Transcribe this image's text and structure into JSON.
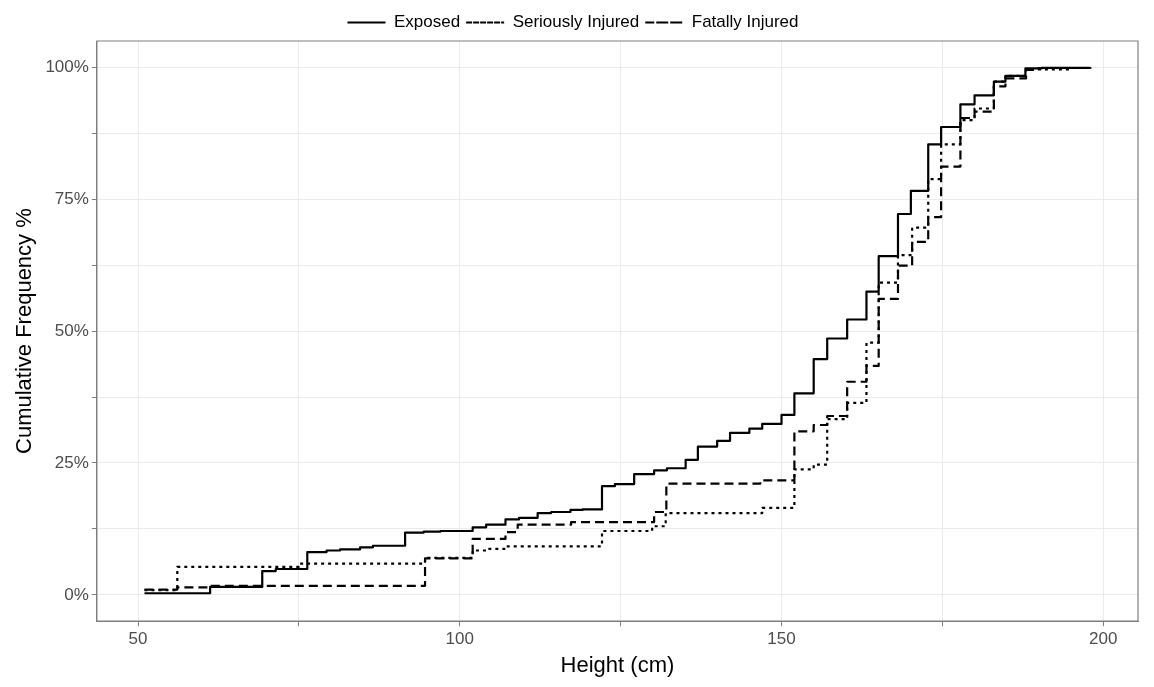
{
  "chart_data": {
    "type": "step",
    "xlabel": "Height (cm)",
    "ylabel": "Cumulative Frequency %",
    "xlim": [
      43.6,
      205.4
    ],
    "xticks": [
      50,
      {
        "value": 75,
        "label": null
      },
      100,
      {
        "value": 125,
        "label": null
      },
      150,
      {
        "value": 175,
        "label": null
      },
      200
    ],
    "ylim": [
      -5,
      105
    ],
    "yticks": [
      {
        "value": 0,
        "label": "0%"
      },
      {
        "value": 12.5,
        "label": null
      },
      {
        "value": 25,
        "label": "25%"
      },
      {
        "value": 37.5,
        "label": null
      },
      {
        "value": 50,
        "label": "50%"
      },
      {
        "value": 62.5,
        "label": null
      },
      {
        "value": 75,
        "label": "75%"
      },
      {
        "value": 87.5,
        "label": null
      },
      {
        "value": 100,
        "label": "100%"
      }
    ],
    "grid": true,
    "legend": "top",
    "marker": "none",
    "series": [
      {
        "name": "Exposed",
        "color": "#000000",
        "line_style": "solid",
        "x": [
          51.0,
          61.2,
          69.3,
          71.4,
          76.3,
          79.3,
          81.4,
          84.5,
          86.5,
          91.5,
          94.4,
          97.0,
          102.0,
          104.1,
          107.1,
          109.2,
          112.1,
          114.2,
          117.2,
          119.1,
          122.1,
          124.1,
          127.1,
          130.2,
          132.2,
          135.1,
          137.0,
          140.0,
          142.0,
          145.0,
          147.0,
          150.0,
          152.0,
          155.0,
          157.1,
          160.2,
          163.2,
          165.1,
          168.1,
          170.1,
          172.8,
          174.8,
          177.8,
          180.0,
          183.0,
          184.8,
          187.9,
          190.4,
          198.0
        ],
        "values": [
          0.3,
          1.5,
          4.5,
          4.9,
          8.1,
          8.4,
          8.6,
          9.0,
          9.3,
          11.8,
          12.0,
          12.1,
          12.8,
          13.3,
          14.3,
          14.6,
          15.5,
          15.7,
          16.1,
          16.2,
          20.6,
          21.0,
          22.9,
          23.6,
          24.0,
          25.6,
          28.1,
          29.2,
          30.7,
          31.5,
          32.4,
          34.1,
          38.2,
          44.7,
          48.6,
          52.2,
          57.5,
          64.2,
          72.2,
          76.6,
          85.4,
          88.7,
          93.0,
          94.7,
          97.3,
          98.4,
          99.8,
          99.9,
          100
        ]
      },
      {
        "name": "Seriously Injured",
        "color": "#000000",
        "line_style": "dotted",
        "x": [
          51.0,
          56.1,
          75.0,
          94.6,
          102.0,
          104.1,
          107.1,
          122.1,
          129.9,
          132.0,
          147.0,
          152.0,
          155.0,
          157.1,
          160.2,
          163.2,
          165.1,
          168.1,
          170.3,
          172.8,
          174.8,
          177.8,
          180.0,
          183.0,
          184.8,
          188.0,
          195.0
        ],
        "values": [
          0.9,
          5.3,
          5.9,
          7.0,
          8.4,
          8.7,
          9.2,
          12.1,
          13.0,
          15.5,
          16.5,
          23.8,
          24.7,
          33.3,
          36.4,
          47.8,
          59.2,
          64.4,
          69.6,
          78.8,
          85.4,
          90.0,
          92.2,
          97.3,
          98.4,
          99.6,
          100
        ]
      },
      {
        "name": "Fatally Injured",
        "color": "#000000",
        "line_style": "dashed",
        "x": [
          51.0,
          56.1,
          61.3,
          94.6,
          102.0,
          107.1,
          109.0,
          117.3,
          130.2,
          132.1,
          146.7,
          152.0,
          155.0,
          157.1,
          160.2,
          163.2,
          165.1,
          168.1,
          170.3,
          172.8,
          174.8,
          177.8,
          180.0,
          183.0,
          184.8,
          188.0,
          190.0
        ],
        "values": [
          1.0,
          1.4,
          1.7,
          6.9,
          10.6,
          11.9,
          13.3,
          13.8,
          15.7,
          21.1,
          21.7,
          31.0,
          32.2,
          33.9,
          40.4,
          43.4,
          56.1,
          62.4,
          66.9,
          71.6,
          81.2,
          90.4,
          91.6,
          96.4,
          97.9,
          99.5,
          100
        ]
      }
    ]
  }
}
